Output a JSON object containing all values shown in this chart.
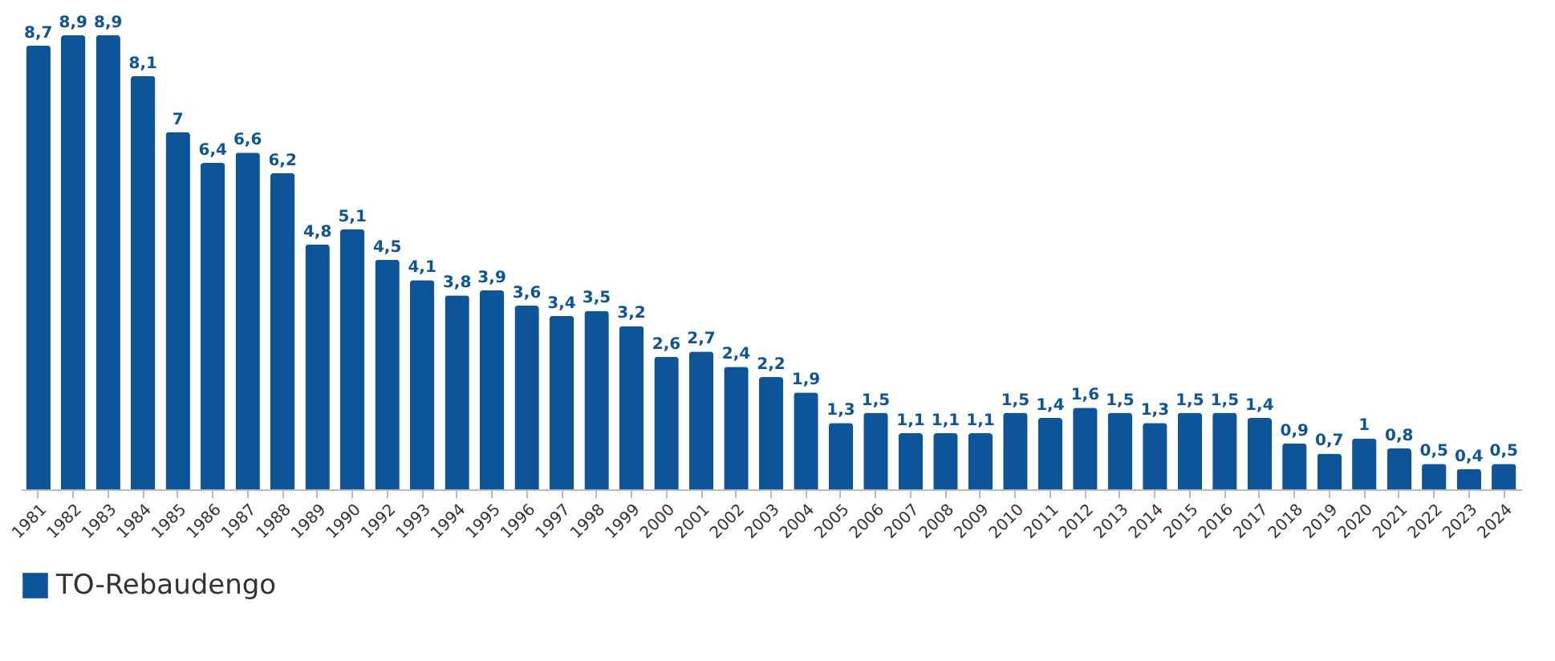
{
  "chart_data": {
    "type": "bar",
    "categories": [
      "1981",
      "1982",
      "1983",
      "1984",
      "1985",
      "1986",
      "1987",
      "1988",
      "1989",
      "1990",
      "1992",
      "1993",
      "1994",
      "1995",
      "1996",
      "1997",
      "1998",
      "1999",
      "2000",
      "2001",
      "2002",
      "2003",
      "2004",
      "2005",
      "2006",
      "2007",
      "2008",
      "2009",
      "2010",
      "2011",
      "2012",
      "2013",
      "2014",
      "2015",
      "2016",
      "2017",
      "2018",
      "2019",
      "2020",
      "2021",
      "2022",
      "2023",
      "2024"
    ],
    "series": [
      {
        "name": "TO-Rebaudengo",
        "color": "#0e5498",
        "values": [
          8.7,
          8.9,
          8.9,
          8.1,
          7,
          6.4,
          6.6,
          6.2,
          4.8,
          5.1,
          4.5,
          4.1,
          3.8,
          3.9,
          3.6,
          3.4,
          3.5,
          3.2,
          2.6,
          2.7,
          2.4,
          2.2,
          1.9,
          1.3,
          1.5,
          1.1,
          1.1,
          1.1,
          1.5,
          1.4,
          1.6,
          1.5,
          1.3,
          1.5,
          1.5,
          1.4,
          0.9,
          0.7,
          1,
          0.8,
          0.5,
          0.4,
          0.5
        ],
        "value_labels": [
          "8,7",
          "8,9",
          "8,9",
          "8,1",
          "7",
          "6,4",
          "6,6",
          "6,2",
          "4,8",
          "5,1",
          "4,5",
          "4,1",
          "3,8",
          "3,9",
          "3,6",
          "3,4",
          "3,5",
          "3,2",
          "2,6",
          "2,7",
          "2,4",
          "2,2",
          "1,9",
          "1,3",
          "1,5",
          "1,1",
          "1,1",
          "1,1",
          "1,5",
          "1,4",
          "1,6",
          "1,5",
          "1,3",
          "1,5",
          "1,5",
          "1,4",
          "0,9",
          "0,7",
          "1",
          "0,8",
          "0,5",
          "0,4",
          "0,5"
        ]
      }
    ],
    "legend": "bottom",
    "grid": false
  }
}
